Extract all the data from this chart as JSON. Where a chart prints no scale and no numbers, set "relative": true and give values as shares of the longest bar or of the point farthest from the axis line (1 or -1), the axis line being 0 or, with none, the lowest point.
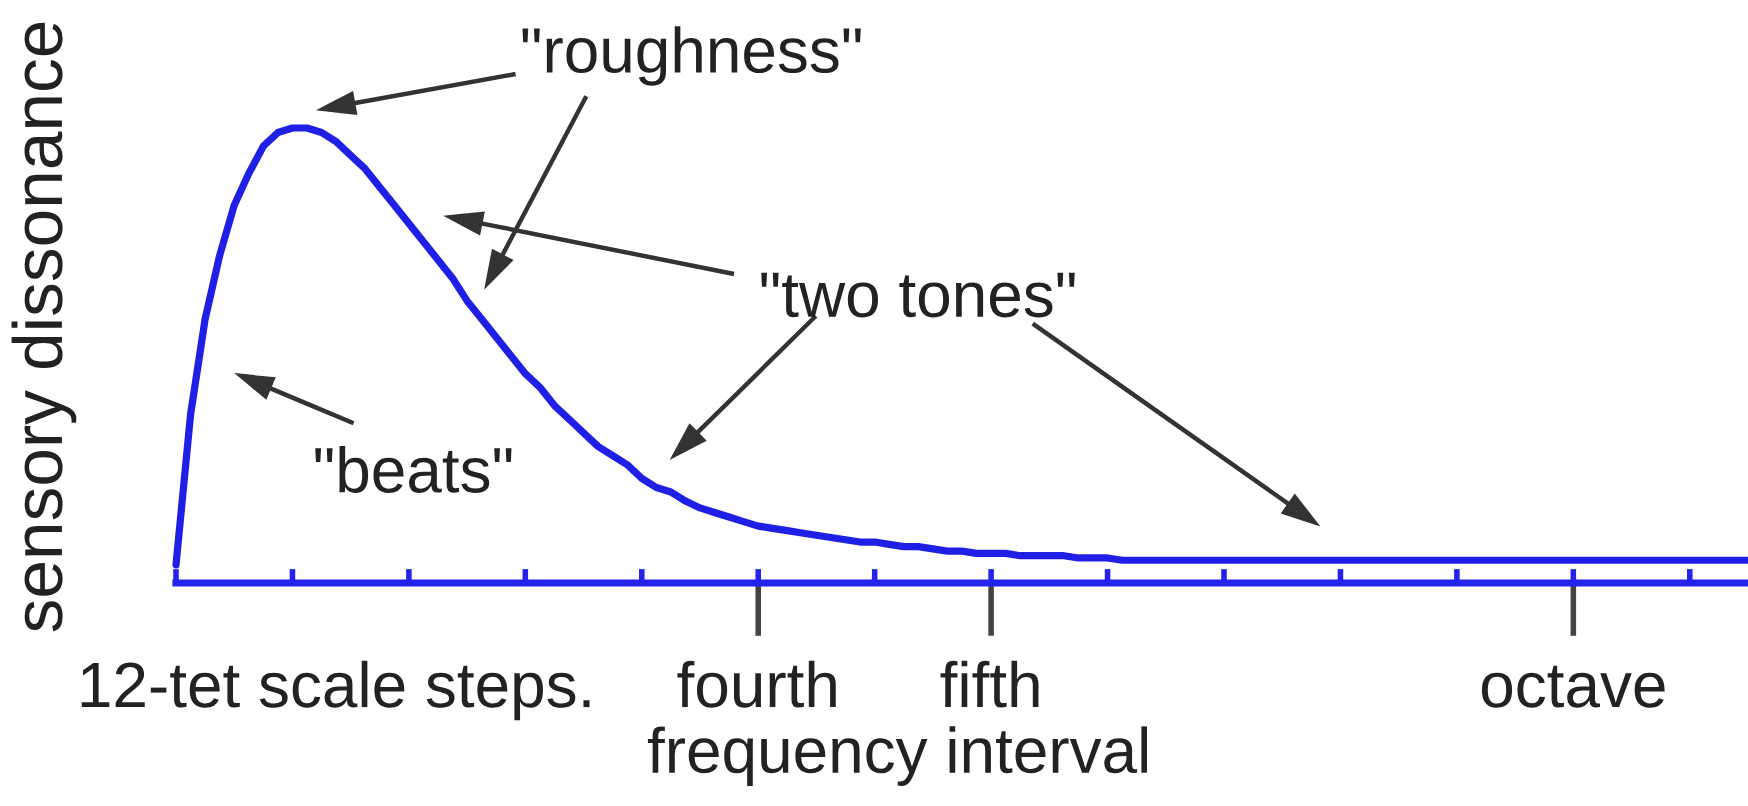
{
  "chart_data": {
    "type": "line",
    "xlabel": "frequency interval",
    "ylabel": "sensory dissonance",
    "relative": true,
    "color": "#1f1fe6",
    "line_style": "solid",
    "categories": [
      null,
      null,
      null,
      null,
      null,
      null,
      null,
      null,
      null,
      null,
      null,
      "12-tet scale steps.",
      null,
      null,
      null,
      null,
      null,
      null,
      null,
      null,
      null,
      null,
      null,
      null,
      null,
      null,
      null,
      null,
      null,
      null,
      null,
      null,
      null,
      null,
      null,
      null,
      null,
      null,
      null,
      null,
      "fourth",
      null,
      null,
      null,
      null,
      null,
      null,
      null,
      null,
      null,
      null,
      null,
      null,
      null,
      null,
      null,
      "fifth",
      null,
      null,
      null,
      null,
      null,
      null,
      null,
      null,
      null,
      null,
      null,
      null,
      null,
      null,
      null,
      null,
      null,
      null,
      null,
      null,
      null,
      null,
      null,
      null,
      null,
      null,
      null,
      null,
      null,
      null,
      null,
      null,
      null,
      null,
      null,
      null,
      null,
      null,
      null,
      "octave",
      null,
      null,
      null,
      null,
      null,
      null,
      null,
      null,
      null,
      null,
      null,
      null
    ],
    "values": [
      0.04,
      0.37,
      0.58,
      0.72,
      0.83,
      0.9,
      0.96,
      0.99,
      1,
      1,
      0.99,
      0.97,
      0.94,
      0.91,
      0.87,
      0.83,
      0.79,
      0.75,
      0.71,
      0.67,
      0.62,
      0.58,
      0.54,
      0.5,
      0.46,
      0.43,
      0.39,
      0.36,
      0.33,
      0.3,
      0.28,
      0.26,
      0.23,
      0.21,
      0.2,
      0.18,
      0.165,
      0.155,
      0.145,
      0.135,
      0.125,
      0.12,
      0.115,
      0.11,
      0.105,
      0.1,
      0.095,
      0.09,
      0.09,
      0.085,
      0.08,
      0.08,
      0.075,
      0.07,
      0.07,
      0.065,
      0.065,
      0.065,
      0.06,
      0.06,
      0.06,
      0.06,
      0.055,
      0.055,
      0.055,
      0.05,
      0.05,
      0.05,
      0.05,
      0.05,
      0.05,
      0.05,
      0.05,
      0.05,
      0.05,
      0.05,
      0.05,
      0.05,
      0.05,
      0.05,
      0.05,
      0.05,
      0.05,
      0.05,
      0.05,
      0.05,
      0.05,
      0.05,
      0.05,
      0.05,
      0.05,
      0.05,
      0.05,
      0.05,
      0.05,
      0.05,
      0.05,
      0.05,
      0.05,
      0.05,
      0.05,
      0.05,
      0.05,
      0.05,
      0.05,
      0.05,
      0.05,
      0.05,
      0.05
    ],
    "annotations": [
      "\"roughness\"",
      "\"two tones\"",
      "\"beats\""
    ]
  }
}
